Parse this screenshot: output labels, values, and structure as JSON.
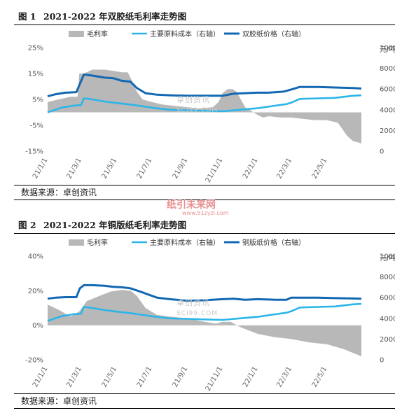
{
  "watermark": {
    "top_text": "卓创资讯",
    "top_sub": "SCI99.COM",
    "middle_text": "纸引未来网",
    "middle_sub": "www.51zyzl.com"
  },
  "colors": {
    "margin_fill": "#b8b8b8",
    "cost_line": "#2bb5e8",
    "price_line": "#1268b3"
  },
  "chart_data": [
    {
      "type": "line",
      "figure_label": "图 1",
      "title": "2021-2022 年双胶纸毛利率走势图",
      "source": "数据来源：卓创资讯",
      "left_axis": {
        "ticks": [
          "25%",
          "15%",
          "5%",
          "-5%",
          "-15%"
        ],
        "range": [
          -15,
          25
        ]
      },
      "right_axis": {
        "unit": "元/吨",
        "ticks": [
          "10000",
          "8000",
          "6000",
          "4000",
          "2000",
          "0"
        ],
        "range": [
          0,
          10000
        ]
      },
      "x_ticks": [
        "21/1/1",
        "21/3/1",
        "21/5/1",
        "21/7/1",
        "21/9/1",
        "21/11/1",
        "22/1/1",
        "22/3/1",
        "22/5/1"
      ],
      "x_range": [
        "2021-01-01",
        "2022-06-30"
      ],
      "legend": [
        "毛利率",
        "主要原料成本（右轴）",
        "双胶纸价格（右轴）"
      ],
      "series": [
        {
          "name": "毛利率",
          "axis": "left",
          "style": "area",
          "x": [
            "2021-01-01",
            "2021-01-20",
            "2021-02-10",
            "2021-02-22",
            "2021-02-25",
            "2021-03-05",
            "2021-03-20",
            "2021-04-10",
            "2021-04-25",
            "2021-05-10",
            "2021-05-20",
            "2021-05-28",
            "2021-06-05",
            "2021-06-15",
            "2021-07-01",
            "2021-07-20",
            "2021-08-10",
            "2021-09-01",
            "2021-09-20",
            "2021-10-15",
            "2021-10-25",
            "2021-11-01",
            "2021-11-10",
            "2021-11-18",
            "2021-11-25",
            "2021-12-10",
            "2022-01-01",
            "2022-01-10",
            "2022-01-20",
            "2022-02-10",
            "2022-03-01",
            "2022-03-20",
            "2022-04-10",
            "2022-05-01",
            "2022-05-20",
            "2022-06-05",
            "2022-06-15",
            "2022-06-30"
          ],
          "values": [
            4,
            5,
            6,
            6,
            15,
            15,
            16.5,
            16.5,
            16,
            15.5,
            15.5,
            12,
            8,
            5,
            4,
            3,
            2.5,
            2,
            1.5,
            2,
            4,
            7.5,
            9,
            9,
            8,
            2,
            -1,
            -2,
            -1.5,
            -2,
            -2,
            -2.5,
            -3,
            -3,
            -4,
            -9,
            -11,
            -12
          ]
        },
        {
          "name": "主要原料成本",
          "axis": "right",
          "style": "line",
          "x": [
            "2021-01-01",
            "2021-01-25",
            "2021-02-15",
            "2021-02-28",
            "2021-03-05",
            "2021-03-20",
            "2021-04-10",
            "2021-05-01",
            "2021-06-01",
            "2021-07-01",
            "2021-08-01",
            "2021-09-01",
            "2021-10-01",
            "2021-11-01",
            "2021-12-01",
            "2022-01-01",
            "2022-02-01",
            "2022-02-20",
            "2022-03-01",
            "2022-03-15",
            "2022-04-15",
            "2022-05-15",
            "2022-06-15",
            "2022-06-30"
          ],
          "values": [
            3750,
            4200,
            4400,
            4450,
            5100,
            5000,
            4800,
            4650,
            4450,
            4200,
            4000,
            3950,
            3900,
            3850,
            4000,
            4150,
            4400,
            4550,
            4700,
            5050,
            5100,
            5150,
            5350,
            5400
          ]
        },
        {
          "name": "双胶纸价格",
          "axis": "right",
          "style": "line",
          "x": [
            "2021-01-01",
            "2021-01-15",
            "2021-02-01",
            "2021-02-20",
            "2021-02-26",
            "2021-03-05",
            "2021-03-20",
            "2021-04-10",
            "2021-04-25",
            "2021-05-10",
            "2021-05-25",
            "2021-06-05",
            "2021-06-20",
            "2021-07-10",
            "2021-08-01",
            "2021-09-01",
            "2021-10-01",
            "2021-11-01",
            "2021-11-20",
            "2021-12-10",
            "2022-01-01",
            "2022-01-20",
            "2022-02-15",
            "2022-02-28",
            "2022-03-15",
            "2022-04-15",
            "2022-05-15",
            "2022-06-15",
            "2022-06-30"
          ],
          "values": [
            5300,
            5500,
            5650,
            5700,
            6500,
            7400,
            7300,
            7100,
            7050,
            6800,
            6700,
            6100,
            5600,
            5450,
            5400,
            5350,
            5350,
            5350,
            5550,
            5600,
            5650,
            5650,
            5750,
            5950,
            6200,
            6200,
            6150,
            6100,
            6050
          ]
        }
      ]
    },
    {
      "type": "line",
      "figure_label": "图 2",
      "title": "2021-2022 年铜版纸毛利率走势图",
      "source": "数据来源：卓创资讯",
      "left_axis": {
        "ticks": [
          "40%",
          "20%",
          "0%",
          "-20%"
        ],
        "range": [
          -20,
          40
        ]
      },
      "right_axis": {
        "unit": "元/吨",
        "ticks": [
          "10000",
          "8000",
          "6000",
          "4000",
          "2000",
          "0"
        ],
        "range": [
          0,
          10000
        ]
      },
      "x_ticks": [
        "21/1/1",
        "21/3/1",
        "21/5/1",
        "21/7/1",
        "21/9/1",
        "21/11/1",
        "22/1/1",
        "22/3/1",
        "22/5/1"
      ],
      "x_range": [
        "2021-01-01",
        "2022-06-30"
      ],
      "legend": [
        "毛利率",
        "主要原料成本（右轴）",
        "铜版纸价格（右轴）"
      ],
      "series": [
        {
          "name": "毛利率",
          "axis": "left",
          "style": "area",
          "x": [
            "2021-01-01",
            "2021-01-20",
            "2021-02-10",
            "2021-02-25",
            "2021-03-10",
            "2021-04-01",
            "2021-04-20",
            "2021-05-10",
            "2021-05-25",
            "2021-06-05",
            "2021-06-20",
            "2021-07-10",
            "2021-08-01",
            "2021-09-01",
            "2021-10-01",
            "2021-10-20",
            "2021-11-01",
            "2021-11-15",
            "2021-12-01",
            "2022-01-01",
            "2022-02-01",
            "2022-03-01",
            "2022-04-01",
            "2022-05-01",
            "2022-06-01",
            "2022-06-30"
          ],
          "values": [
            12,
            9,
            5,
            8,
            14,
            17,
            19.5,
            20.5,
            20,
            17,
            10,
            6,
            5,
            4,
            2,
            1,
            2,
            2,
            -1,
            -5,
            -7,
            -8,
            -10,
            -11,
            -14,
            -18
          ]
        },
        {
          "name": "主要原料成本",
          "axis": "right",
          "style": "line",
          "x": [
            "2021-01-01",
            "2021-01-25",
            "2021-02-15",
            "2021-02-28",
            "2021-03-05",
            "2021-03-20",
            "2021-04-10",
            "2021-05-01",
            "2021-06-01",
            "2021-07-01",
            "2021-08-01",
            "2021-09-01",
            "2021-10-01",
            "2021-11-01",
            "2021-12-01",
            "2022-01-01",
            "2022-02-01",
            "2022-02-20",
            "2022-03-01",
            "2022-03-15",
            "2022-04-15",
            "2022-05-15",
            "2022-06-15",
            "2022-06-30"
          ],
          "values": [
            3750,
            4200,
            4400,
            4450,
            5100,
            5000,
            4800,
            4650,
            4450,
            4200,
            4000,
            3950,
            3900,
            3850,
            4000,
            4150,
            4400,
            4550,
            4700,
            5050,
            5100,
            5150,
            5350,
            5400
          ]
        },
        {
          "name": "铜版纸价格",
          "axis": "right",
          "style": "line",
          "x": [
            "2021-01-01",
            "2021-01-15",
            "2021-02-01",
            "2021-02-20",
            "2021-02-26",
            "2021-03-05",
            "2021-03-20",
            "2021-04-10",
            "2021-04-25",
            "2021-05-10",
            "2021-05-25",
            "2021-06-10",
            "2021-06-25",
            "2021-07-10",
            "2021-08-01",
            "2021-09-01",
            "2021-10-01",
            "2021-11-01",
            "2021-11-20",
            "2021-12-10",
            "2022-01-01",
            "2022-02-01",
            "2022-02-20",
            "2022-02-28",
            "2022-03-15",
            "2022-04-15",
            "2022-05-15",
            "2022-06-30"
          ],
          "values": [
            5900,
            6000,
            6050,
            6050,
            6900,
            7200,
            7200,
            7150,
            7050,
            7000,
            6900,
            6600,
            6300,
            6000,
            5850,
            5700,
            5750,
            5850,
            5900,
            5800,
            5850,
            5800,
            5800,
            6000,
            6000,
            6000,
            5950,
            5900
          ]
        }
      ]
    }
  ]
}
